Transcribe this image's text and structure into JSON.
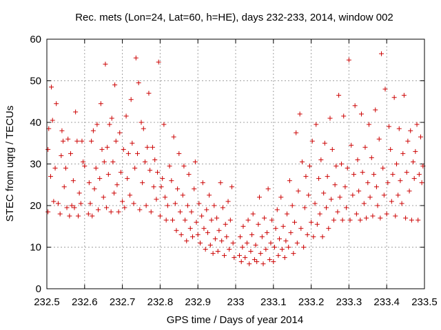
{
  "chart_data": {
    "type": "scatter",
    "title": "Rec. mets (Lon=24, Lat=60, h=HE), days 232-233, 2014, window 002",
    "xlabel": "GPS time / Days of year 2014",
    "ylabel": "STEC from uqrg / TECUs",
    "xlim": [
      232.5,
      233.5
    ],
    "ylim": [
      0,
      60
    ],
    "xticks": [
      232.5,
      232.6,
      232.7,
      232.8,
      232.9,
      233,
      233.1,
      233.2,
      233.3,
      233.4,
      233.5
    ],
    "xtick_labels": [
      "232.5",
      "232.6",
      "232.7",
      "232.8",
      "232.9",
      "233",
      "233.1",
      "233.2",
      "233.3",
      "233.4",
      "233.5"
    ],
    "yticks": [
      0,
      10,
      20,
      30,
      40,
      50,
      60
    ],
    "ytick_labels": [
      "0",
      "10",
      "20",
      "30",
      "40",
      "50",
      "60"
    ],
    "grid": true,
    "marker": "plus",
    "color": "#cc0000",
    "series": [
      {
        "points": [
          [
            232.503,
            18.5
          ],
          [
            232.503,
            33.5
          ],
          [
            232.505,
            38.5
          ],
          [
            232.51,
            27.0
          ],
          [
            232.512,
            48.5
          ],
          [
            232.515,
            40.5
          ],
          [
            232.518,
            21.0
          ],
          [
            232.522,
            29.0
          ],
          [
            232.525,
            44.5
          ],
          [
            232.53,
            20.5
          ],
          [
            232.535,
            18.0
          ],
          [
            232.538,
            32.0
          ],
          [
            232.54,
            38.0
          ],
          [
            232.543,
            35.5
          ],
          [
            232.546,
            24.5
          ],
          [
            232.55,
            29.0
          ],
          [
            232.553,
            19.5
          ],
          [
            232.556,
            36.0
          ],
          [
            232.56,
            17.5
          ],
          [
            232.563,
            32.5
          ],
          [
            232.566,
            20.0
          ],
          [
            232.57,
            26.0
          ],
          [
            232.573,
            19.5
          ],
          [
            232.576,
            42.5
          ],
          [
            232.58,
            35.5
          ],
          [
            232.583,
            17.5
          ],
          [
            232.586,
            23.0
          ],
          [
            232.59,
            20.5
          ],
          [
            232.593,
            35.5
          ],
          [
            232.596,
            30.5
          ],
          [
            232.6,
            29.5
          ],
          [
            232.61,
            18.0
          ],
          [
            232.612,
            25.5
          ],
          [
            232.615,
            20.5
          ],
          [
            232.618,
            35.5
          ],
          [
            232.62,
            17.5
          ],
          [
            232.623,
            38.0
          ],
          [
            232.626,
            24.0
          ],
          [
            232.63,
            29.0
          ],
          [
            232.633,
            39.5
          ],
          [
            232.636,
            19.0
          ],
          [
            232.64,
            26.5
          ],
          [
            232.643,
            44.5
          ],
          [
            232.646,
            33.5
          ],
          [
            232.65,
            22.0
          ],
          [
            232.652,
            30.5
          ],
          [
            232.655,
            54.0
          ],
          [
            232.658,
            19.5
          ],
          [
            232.66,
            34.0
          ],
          [
            232.663,
            27.5
          ],
          [
            232.666,
            39.5
          ],
          [
            232.67,
            18.5
          ],
          [
            232.672,
            41.0
          ],
          [
            232.675,
            30.5
          ],
          [
            232.678,
            23.0
          ],
          [
            232.68,
            49.0
          ],
          [
            232.683,
            35.5
          ],
          [
            232.686,
            25.0
          ],
          [
            232.69,
            18.5
          ],
          [
            232.693,
            37.5
          ],
          [
            232.696,
            28.0
          ],
          [
            232.7,
            21.0
          ],
          [
            232.703,
            33.5
          ],
          [
            232.706,
            19.5
          ],
          [
            232.71,
            41.5
          ],
          [
            232.713,
            26.5
          ],
          [
            232.716,
            32.5
          ],
          [
            232.72,
            22.5
          ],
          [
            232.723,
            45.5
          ],
          [
            232.726,
            35.0
          ],
          [
            232.73,
            20.5
          ],
          [
            232.733,
            29.0
          ],
          [
            232.736,
            55.5
          ],
          [
            232.74,
            32.5
          ],
          [
            232.743,
            49.5
          ],
          [
            232.746,
            19.0
          ],
          [
            232.75,
            40.0
          ],
          [
            232.753,
            25.5
          ],
          [
            232.756,
            38.5
          ],
          [
            232.76,
            30.5
          ],
          [
            232.763,
            20.0
          ],
          [
            232.766,
            34.0
          ],
          [
            232.77,
            47.0
          ],
          [
            232.773,
            28.5
          ],
          [
            232.776,
            18.5
          ],
          [
            232.78,
            34.0
          ],
          [
            232.783,
            24.5
          ],
          [
            232.786,
            31.0
          ],
          [
            232.79,
            21.5
          ],
          [
            232.793,
            28.0
          ],
          [
            232.796,
            54.5
          ],
          [
            232.8,
            17.5
          ],
          [
            232.803,
            24.5
          ],
          [
            232.806,
            26.5
          ],
          [
            232.81,
            39.5
          ],
          [
            232.813,
            22.0
          ],
          [
            232.816,
            16.5
          ],
          [
            232.82,
            20.0
          ],
          [
            232.825,
            29.5
          ],
          [
            232.83,
            26.0
          ],
          [
            232.833,
            16.5
          ],
          [
            232.836,
            36.5
          ],
          [
            232.84,
            20.5
          ],
          [
            232.843,
            14.0
          ],
          [
            232.846,
            24.0
          ],
          [
            232.85,
            32.5
          ],
          [
            232.853,
            18.5
          ],
          [
            232.856,
            13.0
          ],
          [
            232.86,
            22.5
          ],
          [
            232.863,
            29.5
          ],
          [
            232.866,
            16.5
          ],
          [
            232.87,
            11.5
          ],
          [
            232.873,
            20.0
          ],
          [
            232.876,
            27.5
          ],
          [
            232.88,
            14.5
          ],
          [
            232.883,
            18.5
          ],
          [
            232.886,
            12.5
          ],
          [
            232.89,
            24.0
          ],
          [
            232.893,
            30.5
          ],
          [
            232.896,
            16.0
          ],
          [
            232.9,
            13.0
          ],
          [
            232.903,
            20.5
          ],
          [
            232.906,
            11.0
          ],
          [
            232.91,
            17.5
          ],
          [
            232.913,
            25.5
          ],
          [
            232.916,
            14.5
          ],
          [
            232.92,
            9.5
          ],
          [
            232.923,
            19.0
          ],
          [
            232.926,
            13.5
          ],
          [
            232.93,
            22.5
          ],
          [
            232.933,
            10.5
          ],
          [
            232.936,
            16.5
          ],
          [
            232.94,
            8.5
          ],
          [
            232.943,
            20.0
          ],
          [
            232.946,
            12.0
          ],
          [
            232.95,
            17.0
          ],
          [
            232.953,
            9.0
          ],
          [
            232.956,
            14.0
          ],
          [
            232.96,
            25.5
          ],
          [
            232.963,
            11.5
          ],
          [
            232.966,
            19.5
          ],
          [
            232.97,
            8.0
          ],
          [
            232.973,
            15.5
          ],
          [
            232.976,
            12.5
          ],
          [
            232.98,
            21.0
          ],
          [
            232.983,
            9.5
          ],
          [
            232.986,
            16.5
          ],
          [
            232.99,
            24.5
          ],
          [
            232.993,
            11.0
          ],
          [
            232.996,
            7.5
          ],
          [
            233.01,
            8.0
          ],
          [
            233.012,
            12.5
          ],
          [
            233.015,
            6.5
          ],
          [
            233.018,
            10.0
          ],
          [
            233.02,
            15.0
          ],
          [
            233.025,
            7.5
          ],
          [
            233.03,
            11.0
          ],
          [
            233.033,
            16.5
          ],
          [
            233.036,
            6.0
          ],
          [
            233.04,
            9.0
          ],
          [
            233.043,
            13.0
          ],
          [
            233.046,
            18.0
          ],
          [
            233.05,
            7.0
          ],
          [
            233.053,
            10.5
          ],
          [
            233.056,
            6.5
          ],
          [
            233.06,
            15.5
          ],
          [
            233.063,
            22.0
          ],
          [
            233.066,
            8.5
          ],
          [
            233.07,
            12.5
          ],
          [
            233.073,
            6.0
          ],
          [
            233.076,
            17.0
          ],
          [
            233.08,
            9.5
          ],
          [
            233.083,
            13.5
          ],
          [
            233.086,
            24.0
          ],
          [
            233.09,
            7.0
          ],
          [
            233.093,
            11.0
          ],
          [
            233.096,
            16.5
          ],
          [
            233.1,
            6.5
          ],
          [
            233.103,
            10.0
          ],
          [
            233.106,
            14.5
          ],
          [
            233.11,
            19.0
          ],
          [
            233.113,
            8.0
          ],
          [
            233.116,
            12.0
          ],
          [
            233.12,
            22.0
          ],
          [
            233.123,
            9.5
          ],
          [
            233.126,
            15.0
          ],
          [
            233.13,
            7.5
          ],
          [
            233.133,
            11.5
          ],
          [
            233.136,
            18.0
          ],
          [
            233.14,
            10.0
          ],
          [
            233.143,
            26.0
          ],
          [
            233.146,
            13.5
          ],
          [
            233.15,
            20.0
          ],
          [
            233.153,
            8.5
          ],
          [
            233.156,
            16.0
          ],
          [
            233.16,
            37.5
          ],
          [
            233.163,
            11.0
          ],
          [
            233.166,
            23.5
          ],
          [
            233.17,
            42.0
          ],
          [
            233.173,
            14.5
          ],
          [
            233.176,
            30.5
          ],
          [
            233.18,
            10.0
          ],
          [
            233.183,
            19.5
          ],
          [
            233.186,
            27.0
          ],
          [
            233.19,
            13.0
          ],
          [
            233.193,
            22.5
          ],
          [
            233.196,
            29.5
          ],
          [
            233.2,
            16.0
          ],
          [
            233.203,
            35.5
          ],
          [
            233.206,
            12.5
          ],
          [
            233.21,
            20.5
          ],
          [
            233.213,
            39.5
          ],
          [
            233.216,
            15.5
          ],
          [
            233.22,
            26.5
          ],
          [
            233.223,
            18.0
          ],
          [
            233.226,
            31.0
          ],
          [
            233.23,
            12.5
          ],
          [
            233.233,
            23.0
          ],
          [
            233.236,
            35.0
          ],
          [
            233.24,
            19.5
          ],
          [
            233.243,
            27.0
          ],
          [
            233.246,
            14.5
          ],
          [
            233.25,
            41.0
          ],
          [
            233.253,
            21.5
          ],
          [
            233.256,
            33.5
          ],
          [
            233.26,
            16.5
          ],
          [
            233.263,
            25.0
          ],
          [
            233.266,
            29.5
          ],
          [
            233.27,
            18.5
          ],
          [
            233.273,
            46.5
          ],
          [
            233.276,
            22.0
          ],
          [
            233.28,
            30.0
          ],
          [
            233.283,
            16.5
          ],
          [
            233.286,
            41.5
          ],
          [
            233.29,
            24.5
          ],
          [
            233.293,
            19.5
          ],
          [
            233.296,
            29.0
          ],
          [
            233.3,
            55.0
          ],
          [
            233.303,
            16.5
          ],
          [
            233.306,
            34.5
          ],
          [
            233.31,
            22.5
          ],
          [
            233.313,
            27.5
          ],
          [
            233.316,
            44.0
          ],
          [
            233.32,
            18.0
          ],
          [
            233.323,
            31.0
          ],
          [
            233.326,
            23.5
          ],
          [
            233.33,
            16.5
          ],
          [
            233.333,
            42.0
          ],
          [
            233.336,
            28.0
          ],
          [
            233.34,
            20.5
          ],
          [
            233.343,
            34.0
          ],
          [
            233.346,
            17.0
          ],
          [
            233.35,
            25.5
          ],
          [
            233.353,
            39.5
          ],
          [
            233.356,
            22.0
          ],
          [
            233.36,
            31.5
          ],
          [
            233.363,
            17.5
          ],
          [
            233.366,
            27.5
          ],
          [
            233.37,
            43.0
          ],
          [
            233.373,
            24.5
          ],
          [
            233.376,
            20.0
          ],
          [
            233.38,
            36.0
          ],
          [
            233.383,
            17.0
          ],
          [
            233.386,
            56.5
          ],
          [
            233.39,
            29.0
          ],
          [
            233.393,
            22.5
          ],
          [
            233.396,
            48.0
          ],
          [
            233.4,
            18.0
          ],
          [
            233.403,
            25.5
          ],
          [
            233.406,
            39.0
          ],
          [
            233.41,
            33.5
          ],
          [
            233.413,
            21.0
          ],
          [
            233.416,
            27.5
          ],
          [
            233.42,
            46.0
          ],
          [
            233.423,
            17.5
          ],
          [
            233.426,
            30.0
          ],
          [
            233.43,
            22.5
          ],
          [
            233.433,
            38.5
          ],
          [
            233.436,
            26.0
          ],
          [
            233.44,
            20.5
          ],
          [
            233.443,
            32.5
          ],
          [
            233.446,
            46.5
          ],
          [
            233.45,
            17.0
          ],
          [
            233.453,
            28.0
          ],
          [
            233.456,
            35.5
          ],
          [
            233.46,
            23.5
          ],
          [
            233.463,
            38.0
          ],
          [
            233.466,
            16.5
          ],
          [
            233.47,
            30.5
          ],
          [
            233.473,
            26.5
          ],
          [
            233.476,
            33.0
          ],
          [
            233.48,
            39.5
          ],
          [
            233.483,
            16.5
          ],
          [
            233.486,
            27.5
          ],
          [
            233.49,
            36.5
          ],
          [
            233.493,
            25.5
          ],
          [
            233.496,
            29.5
          ]
        ]
      }
    ]
  }
}
